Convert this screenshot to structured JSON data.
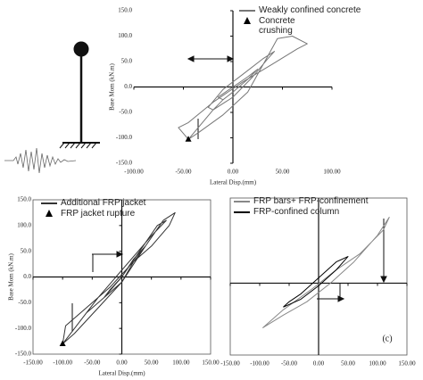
{
  "chart_data": [
    {
      "type": "line",
      "ylabel": "Base Mom (kN.m)",
      "xlabel": "Lateral Disp.(mm)",
      "xlim": [
        -100,
        100
      ],
      "ylim": [
        -150,
        150
      ],
      "xticks": [
        {
          "value": -100,
          "label": "-100.00"
        },
        {
          "value": -50,
          "label": "-50.00"
        },
        {
          "value": 0,
          "label": "0.00"
        },
        {
          "value": 50,
          "label": "50.00"
        },
        {
          "value": 100,
          "label": "100.00"
        }
      ],
      "yticks": [
        {
          "value": 150,
          "label": "150.0"
        },
        {
          "value": 100,
          "label": "100.0"
        },
        {
          "value": 50,
          "label": "50.0"
        },
        {
          "value": 0,
          "label": "0.0"
        },
        {
          "value": -50,
          "label": "-50.0"
        },
        {
          "value": -100,
          "label": "-100.0"
        },
        {
          "value": -150,
          "label": "-150.0"
        }
      ],
      "series": [
        {
          "name": "Weakly confined concrete",
          "color": "#777777",
          "x": [
            -45,
            -35,
            -10,
            15,
            35,
            45,
            60,
            75,
            65,
            40,
            10,
            -20,
            -45,
            -55,
            -45,
            -20,
            0,
            20,
            35,
            42,
            30,
            10,
            -10,
            -25,
            -20,
            -10,
            0,
            15,
            25,
            15,
            0,
            -15,
            -10
          ],
          "values": [
            -103,
            -90,
            -55,
            -10,
            60,
            95,
            100,
            85,
            75,
            45,
            10,
            -30,
            -70,
            -80,
            -103,
            -45,
            -20,
            20,
            55,
            70,
            55,
            25,
            -5,
            -40,
            -45,
            -25,
            -10,
            15,
            35,
            20,
            0,
            -20,
            -25
          ]
        },
        {
          "name": "Concrete crushing",
          "color": "#000000",
          "marker": "triangle",
          "x": [
            -45
          ],
          "values": [
            -103
          ]
        }
      ]
    },
    {
      "type": "line",
      "ylabel": "Base Mom (kN.m)",
      "xlabel": "Lateral Disp.(mm)",
      "xlim": [
        -150,
        150
      ],
      "ylim": [
        -150,
        150
      ],
      "xticks": [
        {
          "value": -150,
          "label": "-150.00"
        },
        {
          "value": -100,
          "label": "-100.00"
        },
        {
          "value": -50,
          "label": "-50.00"
        },
        {
          "value": 0,
          "label": "0.00"
        },
        {
          "value": 50,
          "label": "50.00"
        },
        {
          "value": 100,
          "label": "100.00"
        },
        {
          "value": 150,
          "label": "150.00"
        }
      ],
      "yticks": [
        {
          "value": 150,
          "label": "150.0"
        },
        {
          "value": 100,
          "label": "100.0"
        },
        {
          "value": 50,
          "label": "50.0"
        },
        {
          "value": 0,
          "label": "0.0"
        },
        {
          "value": -50,
          "label": "-50.0"
        },
        {
          "value": -100,
          "label": "-100.0"
        },
        {
          "value": -150,
          "label": "-150.0"
        }
      ],
      "series": [
        {
          "name": "Additional FRP jacket",
          "color": "#333333",
          "x": [
            -100,
            -80,
            -40,
            0,
            40,
            70,
            90,
            80,
            50,
            20,
            -20,
            -60,
            -95,
            -100,
            -60,
            -30,
            0,
            30,
            60,
            75,
            50,
            20,
            -10,
            -40,
            -60,
            -30,
            0,
            20,
            40,
            20,
            0,
            -20,
            -30
          ],
          "values": [
            -130,
            -110,
            -60,
            -10,
            60,
            110,
            125,
            100,
            60,
            30,
            -20,
            -60,
            -95,
            -130,
            -70,
            -40,
            0,
            50,
            100,
            110,
            80,
            40,
            0,
            -40,
            -70,
            -40,
            -10,
            30,
            60,
            35,
            0,
            -25,
            -40
          ]
        },
        {
          "name": "FRP jacket rupture",
          "color": "#000000",
          "marker": "triangle",
          "x": [
            -100
          ],
          "values": [
            -130
          ]
        }
      ]
    },
    {
      "type": "line",
      "annotation": "(c)",
      "xlim": [
        -150,
        150
      ],
      "ylim": [
        -135,
        160
      ],
      "xticks": [
        {
          "value": -150,
          "label": "-150.00"
        },
        {
          "value": -100,
          "label": "-100.00"
        },
        {
          "value": -50,
          "label": "-50.00"
        },
        {
          "value": 0,
          "label": "0.00"
        },
        {
          "value": 50,
          "label": "50.00"
        },
        {
          "value": 100,
          "label": "100.00"
        },
        {
          "value": 150,
          "label": "150.00"
        }
      ],
      "series": [
        {
          "name": "FRP bars+ FRP-confinement",
          "color": "#888888",
          "x": [
            -95,
            -60,
            -20,
            20,
            60,
            100,
            120,
            110,
            70,
            30,
            -10,
            -60,
            -95
          ],
          "values": [
            -84,
            -60,
            -35,
            0,
            40,
            90,
            124,
            100,
            55,
            25,
            -10,
            -50,
            -84
          ]
        },
        {
          "name": "FRP-confined column",
          "color": "#000000",
          "x": [
            -60,
            -30,
            0,
            30,
            50,
            30,
            0,
            -30,
            -50,
            -60
          ],
          "values": [
            -45,
            -30,
            -5,
            25,
            50,
            40,
            10,
            -20,
            -35,
            -45
          ]
        }
      ]
    }
  ]
}
